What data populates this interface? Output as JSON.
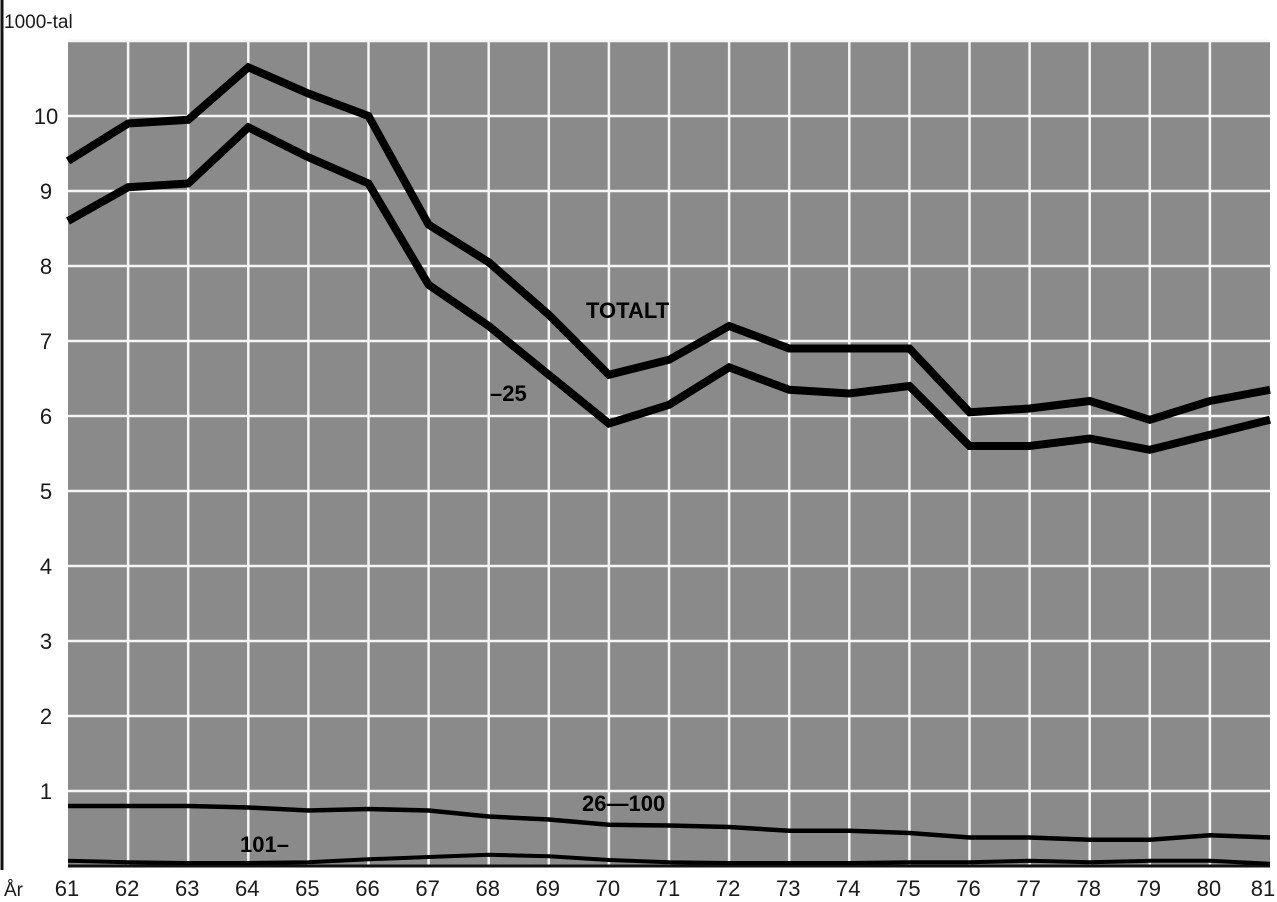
{
  "chart_data": {
    "type": "line",
    "ylabel": "1000-tal",
    "xlabel": "År",
    "x": [
      61,
      62,
      63,
      64,
      65,
      66,
      67,
      68,
      69,
      70,
      71,
      72,
      73,
      74,
      75,
      76,
      77,
      78,
      79,
      80,
      81
    ],
    "xlim": [
      61,
      81
    ],
    "ylim": [
      0,
      11
    ],
    "yticks": [
      1,
      2,
      3,
      4,
      5,
      6,
      7,
      8,
      9,
      10
    ],
    "grid": true,
    "series": [
      {
        "name": "TOTALT",
        "values": [
          9.4,
          9.9,
          9.95,
          10.65,
          10.3,
          10.0,
          8.55,
          8.05,
          7.35,
          6.55,
          6.75,
          7.2,
          6.9,
          6.9,
          6.9,
          6.05,
          6.1,
          6.2,
          5.95,
          6.2,
          6.35
        ]
      },
      {
        "name": "–25",
        "values": [
          8.6,
          9.05,
          9.1,
          9.85,
          9.45,
          9.1,
          7.75,
          7.2,
          6.55,
          5.9,
          6.15,
          6.65,
          6.35,
          6.3,
          6.4,
          5.6,
          5.6,
          5.7,
          5.55,
          5.75,
          5.95
        ]
      },
      {
        "name": "26—100",
        "values": [
          0.8,
          0.8,
          0.8,
          0.78,
          0.74,
          0.76,
          0.74,
          0.66,
          0.62,
          0.55,
          0.54,
          0.52,
          0.47,
          0.47,
          0.44,
          0.38,
          0.38,
          0.35,
          0.35,
          0.41,
          0.38
        ]
      },
      {
        "name": "101–",
        "values": [
          0.07,
          0.05,
          0.04,
          0.04,
          0.05,
          0.09,
          0.12,
          0.15,
          0.13,
          0.08,
          0.05,
          0.04,
          0.04,
          0.04,
          0.05,
          0.05,
          0.07,
          0.05,
          0.07,
          0.07,
          0.03
        ]
      }
    ],
    "colors": {
      "plot_background": "#8a8a8a",
      "grid": "#f5f5f5",
      "lines": "#000000",
      "text": "#1a1a1a"
    }
  }
}
